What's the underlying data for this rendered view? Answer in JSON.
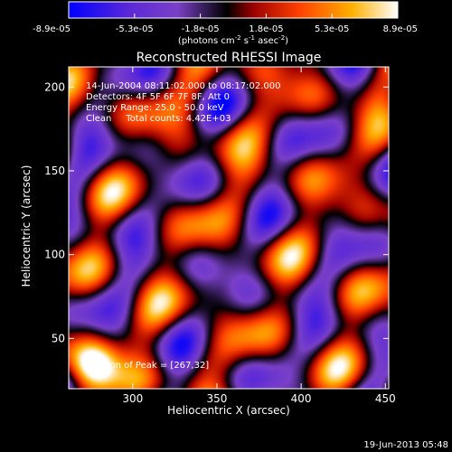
{
  "chart_data": {
    "type": "heatmap",
    "title": "Reconstructed RHESSI Image",
    "xlabel": "Heliocentric X (arcsec)",
    "ylabel": "Heliocentric Y (arcsec)",
    "xlim": [
      262,
      452
    ],
    "ylim": [
      20,
      212
    ],
    "x_ticks": [
      300,
      350,
      400,
      450
    ],
    "y_ticks": [
      50,
      100,
      150,
      200
    ],
    "x_tick_labels": [
      "300",
      "350",
      "400",
      "450"
    ],
    "y_tick_labels": [
      "50",
      "100",
      "150",
      "200"
    ],
    "colorbar": {
      "tick_labels": [
        "-8.9e-05",
        "-5.3e-05",
        "-1.8e-05",
        "1.8e-05",
        "5.3e-05",
        "8.9e-05"
      ],
      "unit_base": "(photons cm",
      "unit_exp1": "-2",
      "unit_mid": " s",
      "unit_exp2": "-1",
      "unit_mid2": " asec",
      "unit_exp3": "-2",
      "unit_end": ")",
      "colors": [
        "#0000ff",
        "#7733cc",
        "#000000",
        "#aa0000",
        "#ff5500",
        "#ffcc00",
        "#ffffff"
      ]
    },
    "annotations": [
      "14-Jun-2004 08:11:02.000 to 08:17:02.000",
      "Detectors: 4F 5F 6F 7F 8F, Att 0",
      "Energy Range: 25.0 - 50.0 keV",
      "Clean     Total counts: 4.42E+03"
    ],
    "peak_label": "Position of Peak = [267,32]",
    "peak": [
      267,
      32
    ],
    "peak_value": 8.9e-05,
    "grid": false,
    "value_range": [
      -8.9e-05,
      8.9e-05
    ]
  },
  "footer": {
    "timestamp": "19-Jun-2013 05:48"
  }
}
